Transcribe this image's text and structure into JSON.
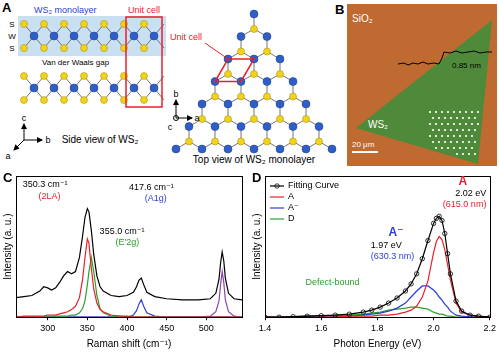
{
  "diagram": {
    "panel_A": {
      "label": "A",
      "side_view": {
        "band_label": "WS₂ monolayer",
        "layer_labels": [
          "S",
          "W",
          "S"
        ],
        "gap_label": "Van der Waals gap",
        "unit_cell": "Unit cell",
        "caption": "Side view of WS₂",
        "axes": [
          "a",
          "b",
          "c"
        ]
      },
      "top_view": {
        "unit_cell": "Unit cell",
        "caption": "Top view of WS₂ monolayer",
        "axes": [
          "a",
          "b",
          "c"
        ]
      }
    },
    "panel_B": {
      "label": "B",
      "substrate": "SiO₂",
      "flake": "WS₂",
      "step_height": "0.85 nm",
      "scale_bar": "20 μm"
    }
  },
  "chart_data": [
    {
      "type": "line",
      "panel_label": "C",
      "x_label": "Raman shift (cm⁻¹)",
      "y_label": "Intensity (a. u.)",
      "x": [
        260,
        270,
        280,
        290,
        295,
        300,
        305,
        310,
        315,
        320,
        325,
        330,
        335,
        340,
        344,
        347,
        350,
        352,
        355,
        358,
        362,
        366,
        370,
        380,
        390,
        400,
        408,
        412,
        415,
        418,
        421,
        425,
        435,
        450,
        470,
        490,
        505,
        512,
        516,
        518,
        520,
        522,
        524,
        528,
        535,
        545
      ],
      "series": [
        {
          "color": "#000000",
          "values": [
            0.18,
            0.19,
            0.2,
            0.24,
            0.28,
            0.27,
            0.25,
            0.27,
            0.32,
            0.38,
            0.42,
            0.4,
            0.42,
            0.55,
            0.75,
            0.92,
            1.0,
            0.97,
            0.8,
            0.58,
            0.38,
            0.28,
            0.24,
            0.2,
            0.19,
            0.2,
            0.23,
            0.28,
            0.34,
            0.36,
            0.3,
            0.23,
            0.19,
            0.17,
            0.16,
            0.16,
            0.17,
            0.22,
            0.35,
            0.5,
            0.6,
            0.52,
            0.36,
            0.22,
            0.17,
            0.16
          ]
        },
        {
          "color": "#e8202a",
          "values": [
            0,
            0.01,
            0.01,
            0.01,
            0.01,
            0.02,
            0.02,
            0.02,
            0.03,
            0.04,
            0.05,
            0.07,
            0.1,
            0.18,
            0.35,
            0.55,
            0.72,
            0.68,
            0.45,
            0.26,
            0.13,
            0.07,
            0.05,
            0.02,
            0.01,
            0.01,
            0,
            0,
            0,
            0,
            0,
            0,
            0,
            0,
            0,
            0,
            0,
            0,
            0,
            0,
            0,
            0,
            0,
            0,
            0,
            0
          ]
        },
        {
          "color": "#2ca02c",
          "values": [
            0,
            0,
            0,
            0,
            0,
            0,
            0,
            0.01,
            0.01,
            0.01,
            0.01,
            0.02,
            0.02,
            0.04,
            0.08,
            0.15,
            0.3,
            0.42,
            0.55,
            0.42,
            0.2,
            0.08,
            0.04,
            0.01,
            0.01,
            0,
            0,
            0,
            0,
            0,
            0,
            0,
            0,
            0,
            0,
            0,
            0,
            0,
            0,
            0,
            0,
            0,
            0,
            0,
            0,
            0
          ]
        },
        {
          "color": "#2a3fd6",
          "values": [
            0,
            0,
            0,
            0,
            0,
            0,
            0,
            0,
            0,
            0,
            0,
            0,
            0,
            0,
            0,
            0,
            0,
            0,
            0,
            0,
            0,
            0,
            0,
            0,
            0,
            0,
            0.02,
            0.06,
            0.12,
            0.16,
            0.1,
            0.04,
            0.01,
            0,
            0,
            0,
            0,
            0,
            0,
            0,
            0,
            0,
            0,
            0,
            0,
            0
          ]
        },
        {
          "color": "#8e44ad",
          "values": [
            0,
            0,
            0,
            0,
            0,
            0,
            0,
            0,
            0,
            0,
            0,
            0,
            0,
            0,
            0,
            0,
            0,
            0,
            0,
            0,
            0,
            0,
            0,
            0,
            0,
            0,
            0,
            0,
            0,
            0,
            0,
            0,
            0,
            0,
            0,
            0,
            0.01,
            0.05,
            0.15,
            0.3,
            0.42,
            0.32,
            0.16,
            0.05,
            0.01,
            0
          ]
        }
      ],
      "xlim": [
        260,
        545
      ],
      "xticks": [
        300,
        350,
        400,
        450,
        500
      ],
      "ylim": [
        0,
        1.3
      ],
      "tick_labels": "x",
      "grid": false,
      "annotations": [
        {
          "text": "350.3 cm⁻¹",
          "color": "#000000"
        },
        {
          "text": "(2LA)",
          "color": "#e8202a"
        },
        {
          "text": "355.0 cm⁻¹",
          "color": "#000000"
        },
        {
          "text": "(E'2g)",
          "color": "#2ca02c"
        },
        {
          "text": "417.6 cm⁻¹",
          "color": "#000000"
        },
        {
          "text": "(A1g)",
          "color": "#2a3fd6"
        }
      ]
    },
    {
      "type": "line",
      "panel_label": "D",
      "x_label": "Photon Energy (eV)",
      "y_label": "Intensity (a. u.)",
      "x": [
        1.4,
        1.45,
        1.5,
        1.55,
        1.6,
        1.65,
        1.7,
        1.75,
        1.78,
        1.81,
        1.84,
        1.87,
        1.9,
        1.92,
        1.94,
        1.96,
        1.98,
        2.0,
        2.01,
        2.02,
        2.03,
        2.04,
        2.05,
        2.06,
        2.08,
        2.1,
        2.13,
        2.16,
        2.2
      ],
      "series": [
        {
          "name": "Fitting Curve",
          "color": "#000000",
          "marker": "circle",
          "values": [
            0,
            0,
            0.005,
            0.01,
            0.015,
            0.02,
            0.03,
            0.05,
            0.07,
            0.1,
            0.14,
            0.19,
            0.26,
            0.33,
            0.43,
            0.58,
            0.76,
            0.93,
            0.98,
            1.0,
            0.96,
            0.83,
            0.63,
            0.43,
            0.16,
            0.06,
            0.02,
            0.01,
            0
          ]
        },
        {
          "name": "A",
          "color": "#e8202a",
          "values": [
            0,
            0,
            0,
            0,
            0,
            0,
            0.01,
            0.01,
            0.01,
            0.02,
            0.02,
            0.03,
            0.05,
            0.07,
            0.11,
            0.2,
            0.36,
            0.64,
            0.75,
            0.8,
            0.77,
            0.67,
            0.52,
            0.37,
            0.14,
            0.05,
            0.02,
            0.01,
            0
          ]
        },
        {
          "name": "A⁻",
          "color": "#2a3fd6",
          "values": [
            0,
            0,
            0,
            0.01,
            0.01,
            0.01,
            0.01,
            0.02,
            0.03,
            0.04,
            0.06,
            0.09,
            0.14,
            0.2,
            0.26,
            0.31,
            0.31,
            0.27,
            0.24,
            0.2,
            0.17,
            0.13,
            0.1,
            0.06,
            0.02,
            0.01,
            0,
            0,
            0
          ]
        },
        {
          "name": "D",
          "color": "#2ca02c",
          "values": [
            0,
            0,
            0.005,
            0.01,
            0.01,
            0.02,
            0.02,
            0.03,
            0.04,
            0.05,
            0.07,
            0.08,
            0.09,
            0.1,
            0.1,
            0.09,
            0.08,
            0.05,
            0.04,
            0.03,
            0.03,
            0.02,
            0.01,
            0.01,
            0,
            0,
            0,
            0,
            0
          ]
        }
      ],
      "xlim": [
        1.4,
        2.2
      ],
      "xticks": [
        1.4,
        1.6,
        1.8,
        {
          "value": 2,
          "label": "2.0"
        },
        2.2
      ],
      "ylim": [
        0,
        1.4
      ],
      "tick_labels": "x",
      "grid": false,
      "legend": "upper left",
      "annotations": [
        {
          "text": "A",
          "color": "#e8202a"
        },
        {
          "text": "2.02 eV",
          "color": "#000000"
        },
        {
          "text": "(615.0 nm)",
          "color": "#e8202a"
        },
        {
          "text": "A⁻",
          "color": "#2a3fd6"
        },
        {
          "text": "1.97 eV",
          "color": "#000000"
        },
        {
          "text": "(630.3 nm)",
          "color": "#2a3fd6"
        },
        {
          "text": "Defect-bound",
          "color": "#2ca02c"
        }
      ]
    }
  ]
}
